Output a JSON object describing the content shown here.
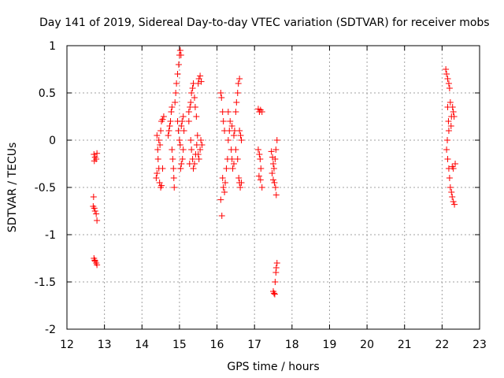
{
  "chart_data": {
    "type": "scatter",
    "title": "Day 141 of 2019, Sidereal Day-to-day VTEC variation (SDTVAR) for receiver mobs",
    "xlabel": "GPS time / hours",
    "ylabel": "SDTVAR / TECUs",
    "xlim": [
      12,
      23
    ],
    "ylim": [
      -2,
      1
    ],
    "x_ticks": [
      12,
      13,
      14,
      15,
      16,
      17,
      18,
      19,
      20,
      21,
      22,
      23
    ],
    "y_ticks": [
      -2,
      -1.5,
      -1,
      -0.5,
      0,
      0.5,
      1
    ],
    "x_tick_labels": [
      "12",
      "13",
      "14",
      "15",
      "16",
      "17",
      "18",
      "19",
      "20",
      "21",
      "22",
      "23"
    ],
    "y_tick_labels": [
      "-2",
      "-1.5",
      "-1",
      "-0.5",
      "0",
      "0.5",
      "1"
    ],
    "grid": true,
    "legend": "none",
    "marker": "+",
    "marker_color": "#ff0000",
    "series": [
      {
        "name": "SDTVAR",
        "points": [
          [
            12.72,
            -0.15
          ],
          [
            12.75,
            -0.18
          ],
          [
            12.78,
            -0.2
          ],
          [
            12.8,
            -0.14
          ],
          [
            12.73,
            -0.22
          ],
          [
            12.71,
            -0.6
          ],
          [
            12.7,
            -0.7
          ],
          [
            12.73,
            -0.72
          ],
          [
            12.75,
            -0.75
          ],
          [
            12.78,
            -0.78
          ],
          [
            12.8,
            -0.85
          ],
          [
            12.72,
            -1.25
          ],
          [
            12.75,
            -1.28
          ],
          [
            12.78,
            -1.3
          ],
          [
            12.8,
            -1.32
          ],
          [
            12.74,
            -1.27
          ],
          [
            14.38,
            -0.4
          ],
          [
            14.4,
            -0.35
          ],
          [
            14.42,
            -0.1
          ],
          [
            14.4,
            0.05
          ],
          [
            14.43,
            -0.2
          ],
          [
            14.45,
            -0.3
          ],
          [
            14.47,
            -0.45
          ],
          [
            14.5,
            -0.5
          ],
          [
            14.52,
            -0.48
          ],
          [
            14.55,
            -0.3
          ],
          [
            14.5,
            0.1
          ],
          [
            14.52,
            0.2
          ],
          [
            14.55,
            0.22
          ],
          [
            14.58,
            0.25
          ],
          [
            14.48,
            -0.05
          ],
          [
            14.45,
            0.0
          ],
          [
            14.7,
            0.05
          ],
          [
            14.72,
            0.1
          ],
          [
            14.74,
            0.15
          ],
          [
            14.76,
            0.2
          ],
          [
            14.78,
            0.3
          ],
          [
            14.8,
            0.35
          ],
          [
            14.8,
            -0.1
          ],
          [
            14.82,
            -0.2
          ],
          [
            14.84,
            -0.3
          ],
          [
            14.85,
            -0.4
          ],
          [
            14.86,
            -0.5
          ],
          [
            14.88,
            0.4
          ],
          [
            14.9,
            0.5
          ],
          [
            14.92,
            0.6
          ],
          [
            14.95,
            0.7
          ],
          [
            14.98,
            0.8
          ],
          [
            15.0,
            0.9
          ],
          [
            15.02,
            0.95
          ],
          [
            15.04,
            0.9
          ],
          [
            14.95,
            0.2
          ],
          [
            14.97,
            0.1
          ],
          [
            15.0,
            0.0
          ],
          [
            15.02,
            -0.05
          ],
          [
            15.05,
            0.15
          ],
          [
            15.07,
            0.2
          ],
          [
            15.1,
            0.25
          ],
          [
            15.12,
            0.1
          ],
          [
            15.1,
            -0.1
          ],
          [
            15.08,
            -0.2
          ],
          [
            15.05,
            -0.25
          ],
          [
            15.03,
            -0.3
          ],
          [
            15.25,
            0.3
          ],
          [
            15.28,
            0.35
          ],
          [
            15.3,
            0.4
          ],
          [
            15.32,
            0.5
          ],
          [
            15.35,
            0.55
          ],
          [
            15.37,
            0.6
          ],
          [
            15.4,
            0.45
          ],
          [
            15.42,
            0.35
          ],
          [
            15.45,
            0.25
          ],
          [
            15.3,
            0.0
          ],
          [
            15.32,
            -0.1
          ],
          [
            15.35,
            -0.2
          ],
          [
            15.37,
            -0.3
          ],
          [
            15.4,
            -0.25
          ],
          [
            15.43,
            -0.15
          ],
          [
            15.46,
            -0.05
          ],
          [
            15.48,
            0.05
          ],
          [
            15.5,
            0.6
          ],
          [
            15.52,
            0.65
          ],
          [
            15.55,
            0.68
          ],
          [
            15.58,
            0.62
          ],
          [
            15.5,
            -0.15
          ],
          [
            15.52,
            -0.2
          ],
          [
            15.55,
            -0.1
          ],
          [
            15.57,
            0.0
          ],
          [
            15.6,
            -0.05
          ],
          [
            15.27,
            -0.25
          ],
          [
            15.25,
            0.2
          ],
          [
            16.1,
            0.5
          ],
          [
            16.12,
            0.45
          ],
          [
            16.15,
            0.3
          ],
          [
            16.17,
            0.2
          ],
          [
            16.2,
            0.1
          ],
          [
            16.15,
            -0.4
          ],
          [
            16.17,
            -0.5
          ],
          [
            16.2,
            -0.55
          ],
          [
            16.22,
            -0.45
          ],
          [
            16.25,
            -0.3
          ],
          [
            16.28,
            -0.2
          ],
          [
            16.13,
            -0.8
          ],
          [
            16.1,
            -0.63
          ],
          [
            16.3,
            0.0
          ],
          [
            16.33,
            0.1
          ],
          [
            16.35,
            0.2
          ],
          [
            16.3,
            0.3
          ],
          [
            16.38,
            -0.1
          ],
          [
            16.4,
            -0.2
          ],
          [
            16.42,
            -0.3
          ],
          [
            16.45,
            -0.25
          ],
          [
            16.45,
            0.05
          ],
          [
            16.47,
            0.1
          ],
          [
            16.5,
            0.3
          ],
          [
            16.52,
            0.4
          ],
          [
            16.55,
            0.5
          ],
          [
            16.57,
            0.6
          ],
          [
            16.6,
            0.65
          ],
          [
            16.5,
            -0.1
          ],
          [
            16.55,
            -0.2
          ],
          [
            16.58,
            -0.4
          ],
          [
            16.6,
            -0.45
          ],
          [
            16.62,
            -0.5
          ],
          [
            16.65,
            -0.45
          ],
          [
            16.65,
            0.0
          ],
          [
            16.63,
            0.05
          ],
          [
            16.6,
            0.1
          ],
          [
            16.4,
            0.15
          ],
          [
            17.1,
            0.33
          ],
          [
            17.13,
            0.3
          ],
          [
            17.16,
            0.32
          ],
          [
            17.2,
            0.3
          ],
          [
            17.1,
            -0.1
          ],
          [
            17.13,
            -0.15
          ],
          [
            17.15,
            -0.2
          ],
          [
            17.17,
            -0.3
          ],
          [
            17.12,
            -0.38
          ],
          [
            17.16,
            -0.42
          ],
          [
            17.2,
            -0.5
          ],
          [
            17.45,
            -0.12
          ],
          [
            17.48,
            -0.18
          ],
          [
            17.5,
            -0.25
          ],
          [
            17.52,
            -0.3
          ],
          [
            17.55,
            -0.2
          ],
          [
            17.57,
            -0.1
          ],
          [
            17.6,
            0.0
          ],
          [
            17.47,
            -0.35
          ],
          [
            17.5,
            -0.42
          ],
          [
            17.53,
            -0.45
          ],
          [
            17.56,
            -0.5
          ],
          [
            17.58,
            -0.58
          ],
          [
            17.5,
            -1.6
          ],
          [
            17.52,
            -1.62
          ],
          [
            17.54,
            -1.63
          ],
          [
            17.55,
            -1.5
          ],
          [
            17.57,
            -1.4
          ],
          [
            17.58,
            -1.35
          ],
          [
            17.6,
            -1.3
          ],
          [
            22.1,
            0.75
          ],
          [
            22.12,
            0.7
          ],
          [
            22.15,
            0.65
          ],
          [
            22.18,
            0.6
          ],
          [
            22.2,
            0.55
          ],
          [
            22.15,
            0.35
          ],
          [
            22.17,
            0.2
          ],
          [
            22.18,
            0.1
          ],
          [
            22.14,
            0.0
          ],
          [
            22.12,
            -0.1
          ],
          [
            22.15,
            -0.2
          ],
          [
            22.18,
            -0.3
          ],
          [
            22.2,
            -0.4
          ],
          [
            22.22,
            -0.5
          ],
          [
            22.25,
            -0.55
          ],
          [
            22.27,
            -0.6
          ],
          [
            22.3,
            -0.65
          ],
          [
            22.33,
            -0.68
          ],
          [
            22.25,
            0.25
          ],
          [
            22.28,
            0.35
          ],
          [
            22.3,
            0.3
          ],
          [
            22.32,
            0.25
          ],
          [
            22.35,
            -0.25
          ],
          [
            22.3,
            -0.3
          ],
          [
            22.27,
            -0.28
          ],
          [
            22.22,
            0.4
          ],
          [
            22.24,
            0.15
          ]
        ]
      }
    ]
  }
}
